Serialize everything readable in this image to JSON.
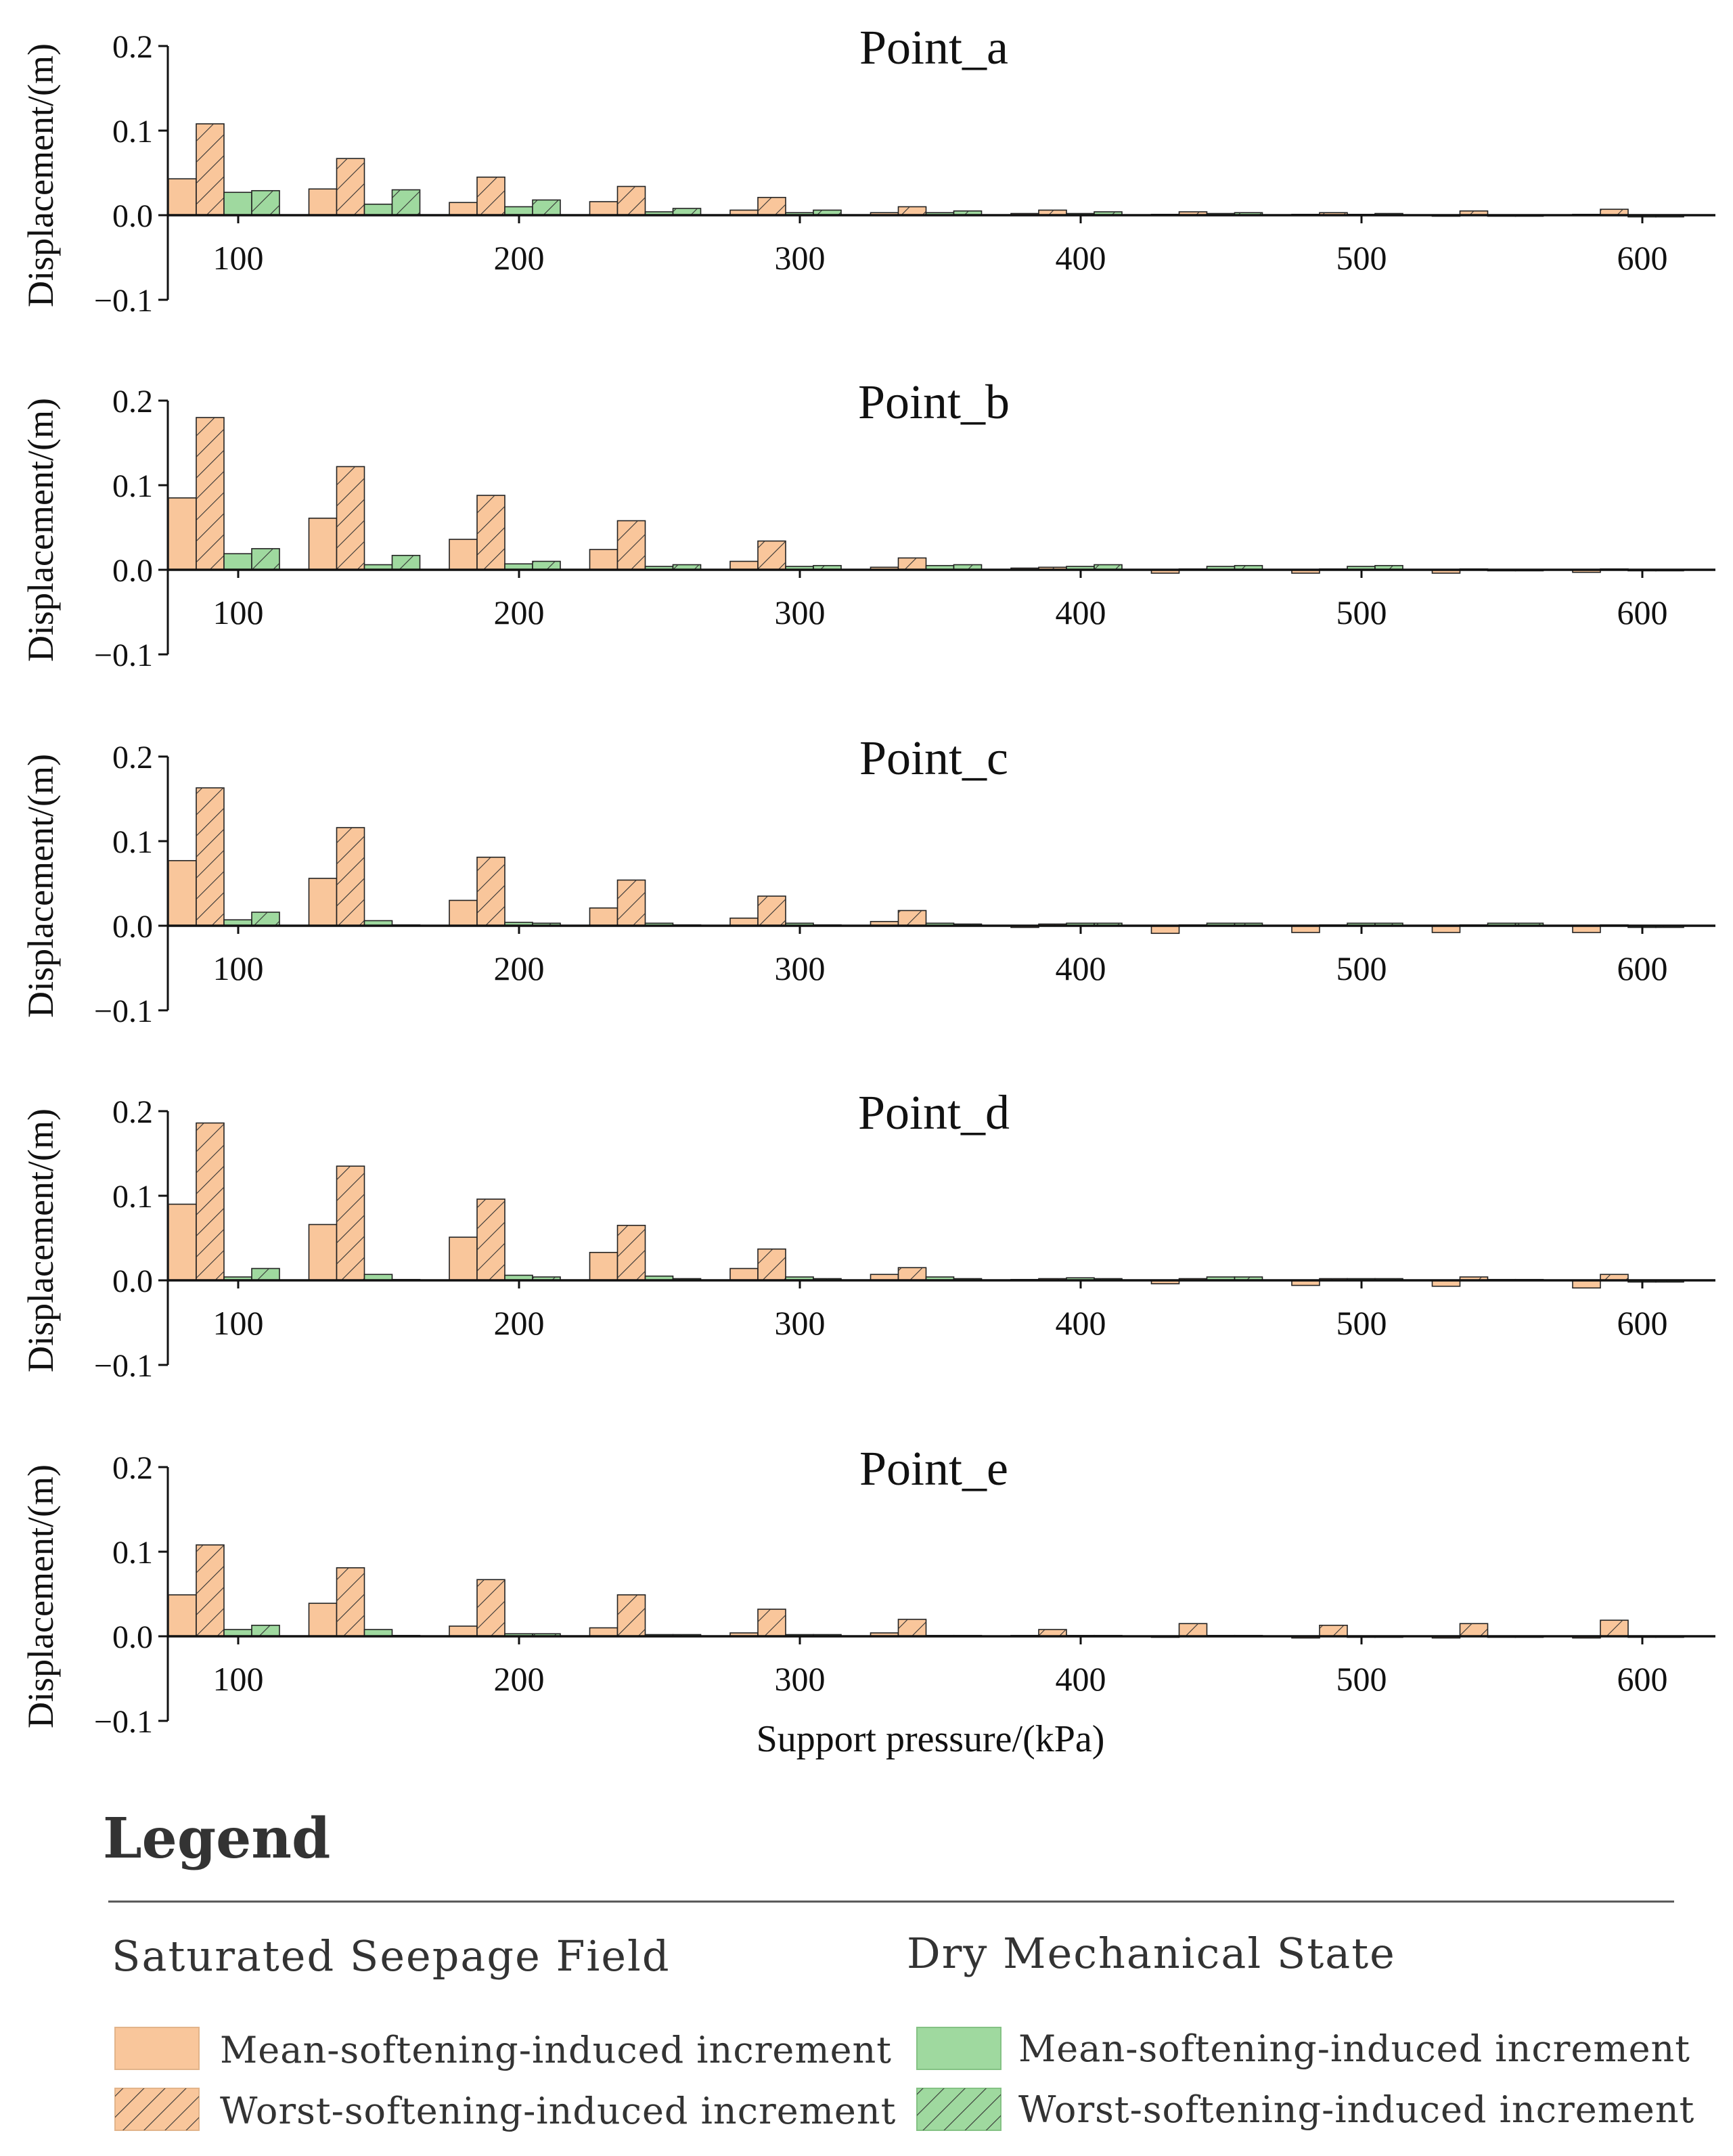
{
  "figure": {
    "xlabel": "Support pressure/(kPa)",
    "ylabel": "Displacement/(m)"
  },
  "legend": {
    "heading": "Legend",
    "groups": [
      {
        "title": "Saturated Seepage Field",
        "items": [
          {
            "label": "Mean-softening-induced increment",
            "color": "#f9c69b",
            "hatch": false
          },
          {
            "label": "Worst-softening-induced increment",
            "color": "#f9c69b",
            "hatch": true
          }
        ]
      },
      {
        "title": "Dry Mechanical State",
        "items": [
          {
            "label": "Mean-softening-induced increment",
            "color": "#9fd99f",
            "hatch": false
          },
          {
            "label": "Worst-softening-induced increment",
            "color": "#9fd99f",
            "hatch": true
          }
        ]
      }
    ]
  },
  "colors": {
    "saturated": "#f9c69b",
    "dry": "#9fd99f",
    "edge": "#222222"
  },
  "chart_data": [
    {
      "type": "bar",
      "title": "Point_a",
      "xlabel": "",
      "ylabel": "Displacement/(m)",
      "ylim": [
        -0.1,
        0.2
      ],
      "yticks": [
        "0.2",
        "0.1",
        "0.0",
        "-0.1"
      ],
      "categories": [
        100,
        150,
        200,
        250,
        300,
        350,
        400,
        450,
        500,
        550,
        600
      ],
      "xticks": [
        100,
        200,
        300,
        400,
        500,
        600
      ],
      "series": [
        {
          "name": "Saturated Seepage Field · Mean-softening-induced increment",
          "values": [
            0.043,
            0.031,
            0.015,
            0.016,
            0.006,
            0.003,
            0.002,
            0.001,
            0.001,
            0.0,
            0.001
          ]
        },
        {
          "name": "Saturated Seepage Field · Worst-softening-induced increment",
          "values": [
            0.108,
            0.067,
            0.045,
            0.034,
            0.021,
            0.01,
            0.006,
            0.004,
            0.003,
            0.005,
            0.007
          ]
        },
        {
          "name": "Dry Mechanical State · Mean-softening-induced increment",
          "values": [
            0.027,
            0.013,
            0.01,
            0.004,
            0.003,
            0.003,
            0.002,
            0.002,
            0.001,
            0.0,
            -0.002
          ]
        },
        {
          "name": "Dry Mechanical State · Worst-softening-induced increment",
          "values": [
            0.029,
            0.03,
            0.018,
            0.008,
            0.006,
            0.005,
            0.004,
            0.003,
            0.002,
            0.0,
            -0.002
          ]
        }
      ]
    },
    {
      "type": "bar",
      "title": "Point_b",
      "xlabel": "",
      "ylabel": "Displacement/(m)",
      "ylim": [
        -0.1,
        0.2
      ],
      "yticks": [
        "0.2",
        "0.1",
        "0.0",
        "-0.1"
      ],
      "categories": [
        100,
        150,
        200,
        250,
        300,
        350,
        400,
        450,
        500,
        550,
        600
      ],
      "xticks": [
        100,
        200,
        300,
        400,
        500,
        600
      ],
      "series": [
        {
          "name": "Saturated Seepage Field · Mean-softening-induced increment",
          "values": [
            0.085,
            0.061,
            0.036,
            0.024,
            0.01,
            0.003,
            0.002,
            -0.004,
            -0.004,
            -0.004,
            -0.003
          ]
        },
        {
          "name": "Saturated Seepage Field · Worst-softening-induced increment",
          "values": [
            0.18,
            0.122,
            0.088,
            0.058,
            0.034,
            0.014,
            0.003,
            0.001,
            0.001,
            0.001,
            0.001
          ]
        },
        {
          "name": "Dry Mechanical State · Mean-softening-induced increment",
          "values": [
            0.019,
            0.006,
            0.007,
            0.004,
            0.004,
            0.005,
            0.004,
            0.004,
            0.004,
            0.0,
            -0.001
          ]
        },
        {
          "name": "Dry Mechanical State · Worst-softening-induced increment",
          "values": [
            0.025,
            0.017,
            0.01,
            0.006,
            0.005,
            0.006,
            0.006,
            0.005,
            0.005,
            0.0,
            -0.001
          ]
        }
      ]
    },
    {
      "type": "bar",
      "title": "Point_c",
      "xlabel": "",
      "ylabel": "Displacement/(m)",
      "ylim": [
        -0.1,
        0.2
      ],
      "yticks": [
        "0.2",
        "0.1",
        "0.0",
        "-0.1"
      ],
      "categories": [
        100,
        150,
        200,
        250,
        300,
        350,
        400,
        450,
        500,
        550,
        600
      ],
      "xticks": [
        100,
        200,
        300,
        400,
        500,
        600
      ],
      "series": [
        {
          "name": "Saturated Seepage Field · Mean-softening-induced increment",
          "values": [
            0.077,
            0.056,
            0.03,
            0.021,
            0.009,
            0.005,
            -0.002,
            -0.009,
            -0.008,
            -0.008,
            -0.008
          ]
        },
        {
          "name": "Saturated Seepage Field · Worst-softening-induced increment",
          "values": [
            0.163,
            0.116,
            0.081,
            0.054,
            0.035,
            0.018,
            0.002,
            0.001,
            0.001,
            0.001,
            0.001
          ]
        },
        {
          "name": "Dry Mechanical State · Mean-softening-induced increment",
          "values": [
            0.007,
            0.006,
            0.004,
            0.003,
            0.003,
            0.003,
            0.003,
            0.003,
            0.003,
            0.003,
            -0.002
          ]
        },
        {
          "name": "Dry Mechanical State · Worst-softening-induced increment",
          "values": [
            0.016,
            0.001,
            0.003,
            0.001,
            0.001,
            0.002,
            0.003,
            0.003,
            0.003,
            0.003,
            -0.002
          ]
        }
      ]
    },
    {
      "type": "bar",
      "title": "Point_d",
      "xlabel": "",
      "ylabel": "Displacement/(m)",
      "ylim": [
        -0.1,
        0.2
      ],
      "yticks": [
        "0.2",
        "0.1",
        "0.0",
        "-0.1"
      ],
      "categories": [
        100,
        150,
        200,
        250,
        300,
        350,
        400,
        450,
        500,
        550,
        600
      ],
      "xticks": [
        100,
        200,
        300,
        400,
        500,
        600
      ],
      "series": [
        {
          "name": "Saturated Seepage Field · Mean-softening-induced increment",
          "values": [
            0.09,
            0.066,
            0.051,
            0.033,
            0.014,
            0.007,
            0.001,
            -0.004,
            -0.006,
            -0.007,
            -0.009
          ]
        },
        {
          "name": "Saturated Seepage Field · Worst-softening-induced increment",
          "values": [
            0.186,
            0.135,
            0.096,
            0.065,
            0.037,
            0.015,
            0.002,
            0.002,
            0.002,
            0.004,
            0.007
          ]
        },
        {
          "name": "Dry Mechanical State · Mean-softening-induced increment",
          "values": [
            0.004,
            0.007,
            0.006,
            0.005,
            0.004,
            0.004,
            0.003,
            0.004,
            0.002,
            0.001,
            -0.002
          ]
        },
        {
          "name": "Dry Mechanical State · Worst-softening-induced increment",
          "values": [
            0.014,
            0.001,
            0.004,
            0.002,
            0.002,
            0.002,
            0.002,
            0.004,
            0.002,
            0.001,
            -0.002
          ]
        }
      ]
    },
    {
      "type": "bar",
      "title": "Point_e",
      "xlabel": "Support pressure/(kPa)",
      "ylabel": "Displacement/(m)",
      "ylim": [
        -0.1,
        0.2
      ],
      "yticks": [
        "0.2",
        "0.1",
        "0.0",
        "-0.1"
      ],
      "categories": [
        100,
        150,
        200,
        250,
        300,
        350,
        400,
        450,
        500,
        550,
        600
      ],
      "xticks": [
        100,
        200,
        300,
        400,
        500,
        600
      ],
      "series": [
        {
          "name": "Saturated Seepage Field · Mean-softening-induced increment",
          "values": [
            0.049,
            0.039,
            0.012,
            0.01,
            0.004,
            0.004,
            0.001,
            -0.001,
            -0.002,
            -0.002,
            -0.002
          ]
        },
        {
          "name": "Saturated Seepage Field · Worst-softening-induced increment",
          "values": [
            0.108,
            0.081,
            0.067,
            0.049,
            0.032,
            0.02,
            0.008,
            0.015,
            0.013,
            0.015,
            0.019
          ]
        },
        {
          "name": "Dry Mechanical State · Mean-softening-induced increment",
          "values": [
            0.008,
            0.008,
            0.003,
            0.002,
            0.002,
            0.001,
            0.001,
            0.001,
            0.0,
            0.0,
            0.0
          ]
        },
        {
          "name": "Dry Mechanical State · Worst-softening-induced increment",
          "values": [
            0.013,
            0.001,
            0.003,
            0.002,
            0.002,
            0.001,
            0.001,
            0.001,
            0.0,
            0.0,
            0.0
          ]
        }
      ]
    }
  ]
}
